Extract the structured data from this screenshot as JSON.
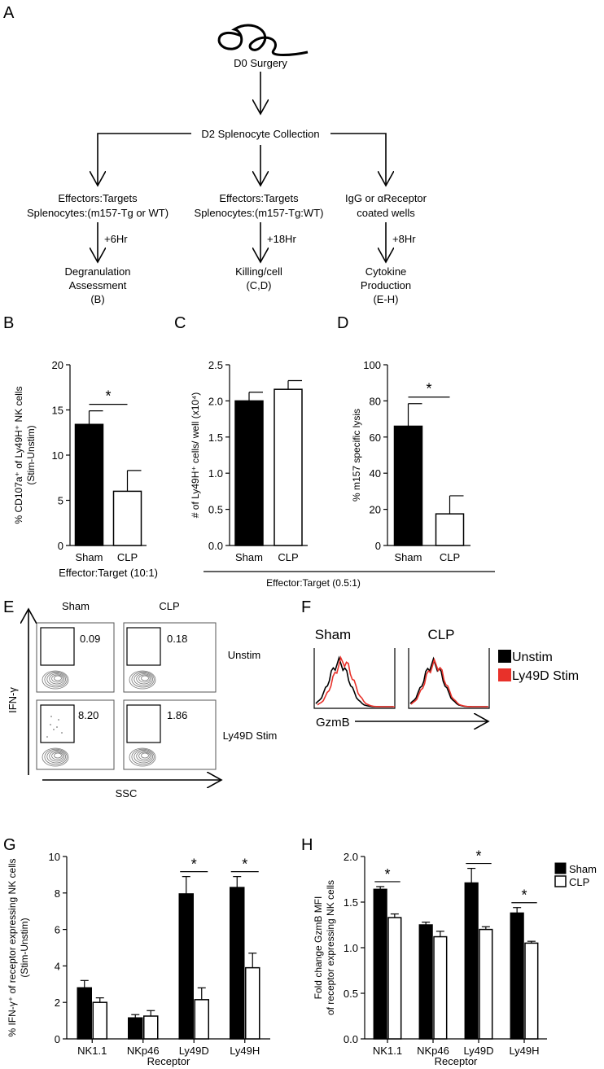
{
  "panel_a": {
    "label": "A",
    "surgery": "D0 Surgery",
    "collection": "D2 Splenocyte Collection",
    "branches": [
      {
        "line1": "Effectors:Targets",
        "line2": "Splenocytes:(m157-Tg or WT)",
        "time": "+6Hr",
        "out1": "Degranulation",
        "out2": "Assessment",
        "out3": "(B)"
      },
      {
        "line1": "Effectors:Targets",
        "line2": "Splenocytes:(m157-Tg:WT)",
        "time": "+18Hr",
        "out1": "Killing/cell",
        "out2": "(C,D)",
        "out3": ""
      },
      {
        "line1": "IgG or αReceptor",
        "line2": "coated wells",
        "time": "+8Hr",
        "out1": "Cytokine",
        "out2": "Production",
        "out3": "(E-H)"
      }
    ]
  },
  "panel_e": {
    "label": "E",
    "col_labels": [
      "Sham",
      "CLP"
    ],
    "row_labels": [
      "Unstim",
      "Ly49D Stim"
    ],
    "values": [
      "0.09",
      "0.18",
      "8.20",
      "1.86"
    ],
    "y_axis": "IFN-γ",
    "x_axis": "SSC"
  },
  "panel_f": {
    "label": "F",
    "col_labels": [
      "Sham",
      "CLP"
    ],
    "legend": [
      {
        "name": "Unstim",
        "color": "#000000"
      },
      {
        "name": "Ly49D Stim",
        "color": "#e8312a"
      }
    ],
    "x_axis": "GzmB"
  },
  "chart_data": [
    {
      "panel": "B",
      "type": "bar",
      "categories": [
        "Sham",
        "CLP"
      ],
      "values": [
        13.4,
        6.0
      ],
      "errors": [
        1.5,
        2.3
      ],
      "fills": [
        "#000000",
        "#ffffff"
      ],
      "ylabel_lines": [
        "% CD107a⁺ of Ly49H⁺ NK cells",
        "(Stim-Unstim)"
      ],
      "xlabel": "Effector:Target (10:1)",
      "ylim": [
        0,
        20
      ],
      "yticks": [
        "0",
        "5",
        "10",
        "15",
        "20"
      ],
      "significance": [
        "*"
      ]
    },
    {
      "panel": "C",
      "type": "bar",
      "categories": [
        "Sham",
        "CLP"
      ],
      "values": [
        2.0,
        2.16
      ],
      "errors": [
        0.12,
        0.12
      ],
      "fills": [
        "#000000",
        "#ffffff"
      ],
      "ylabel_lines": [
        "# of Ly49H⁺ cells/ well (x10⁴)"
      ],
      "xlabel": "Effector:Target (0.5:1)",
      "ylim": [
        0,
        2.5
      ],
      "yticks": [
        "0.0",
        "0.5",
        "1.0",
        "1.5",
        "2.0",
        "2.5"
      ],
      "significance": []
    },
    {
      "panel": "D",
      "type": "bar",
      "categories": [
        "Sham",
        "CLP"
      ],
      "values": [
        66,
        17.5
      ],
      "errors": [
        12.5,
        10
      ],
      "fills": [
        "#000000",
        "#ffffff"
      ],
      "ylabel_lines": [
        "% m157 specific lysis"
      ],
      "xlabel": "",
      "ylim": [
        0,
        100
      ],
      "yticks": [
        "0",
        "20",
        "40",
        "60",
        "80",
        "100"
      ],
      "significance": [
        "*"
      ]
    },
    {
      "panel": "G",
      "type": "bar",
      "categories": [
        "NK1.1",
        "NKp46",
        "Ly49D",
        "Ly49H"
      ],
      "series": [
        {
          "values": [
            2.8,
            1.15,
            7.95,
            8.3
          ],
          "errors": [
            0.4,
            0.18,
            0.95,
            0.6
          ],
          "fill": "#000000"
        },
        {
          "values": [
            2.0,
            1.25,
            2.15,
            3.9
          ],
          "errors": [
            0.25,
            0.3,
            0.65,
            0.8
          ],
          "fill": "#ffffff"
        }
      ],
      "ylabel_lines": [
        "% IFN-γ⁺ of receptor expressing NK cells",
        "(Stim-Unstim)"
      ],
      "xlabel": "Receptor",
      "ylim": [
        0,
        10
      ],
      "yticks": [
        "0",
        "2",
        "4",
        "6",
        "8",
        "10"
      ],
      "significance_at": [
        "Ly49D",
        "Ly49H"
      ],
      "sig": "*"
    },
    {
      "panel": "H",
      "type": "bar",
      "categories": [
        "NK1.1",
        "NKp46",
        "Ly49D",
        "Ly49H"
      ],
      "series": [
        {
          "name": "Sham",
          "values": [
            1.64,
            1.25,
            1.71,
            1.38
          ],
          "errors": [
            0.03,
            0.03,
            0.16,
            0.06
          ],
          "fill": "#000000"
        },
        {
          "name": "CLP",
          "values": [
            1.33,
            1.12,
            1.2,
            1.05
          ],
          "errors": [
            0.04,
            0.06,
            0.03,
            0.02
          ],
          "fill": "#ffffff"
        }
      ],
      "ylabel_lines": [
        "Fold change GzmB MFI",
        "of receptor expressing NK cells"
      ],
      "xlabel": "Receptor",
      "ylim": [
        0,
        2
      ],
      "yticks": [
        "0.0",
        "0.5",
        "1.0",
        "1.5",
        "2.0"
      ],
      "significance_at": [
        "NK1.1",
        "Ly49D",
        "Ly49H"
      ],
      "sig": "*"
    }
  ]
}
